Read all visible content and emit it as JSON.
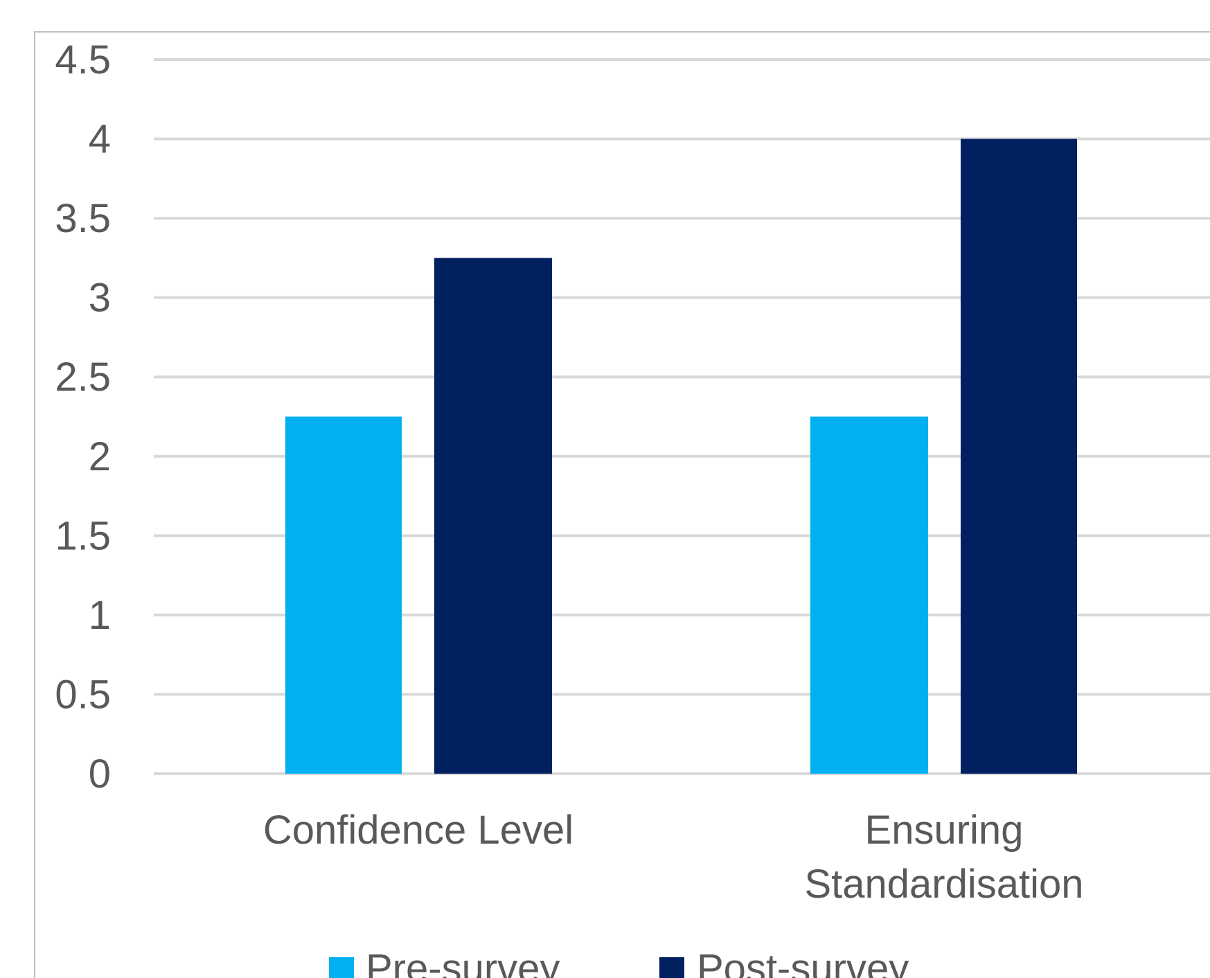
{
  "chart_data": {
    "type": "bar",
    "categories": [
      "Confidence Level",
      "Ensuring Standardisation"
    ],
    "category_lines": [
      [
        "Confidence Level"
      ],
      [
        "Ensuring",
        "Standardisation"
      ]
    ],
    "series": [
      {
        "name": "Pre-survey",
        "values": [
          2.25,
          2.25
        ],
        "color": "#00B0F0"
      },
      {
        "name": "Post-survey",
        "values": [
          3.25,
          4
        ],
        "color": "#002060"
      }
    ],
    "ylim": [
      0,
      4.5
    ],
    "yticks": [
      "0",
      "0.5",
      "1",
      "1.5",
      "2",
      "2.5",
      "3",
      "3.5",
      "4",
      "4.5"
    ],
    "title": "",
    "xlabel": "",
    "ylabel": "",
    "grid": true,
    "legend_position": "bottom",
    "gridline_color": "#D9D9D9",
    "text_color": "#595959",
    "border_color": "#BFBFBF"
  }
}
